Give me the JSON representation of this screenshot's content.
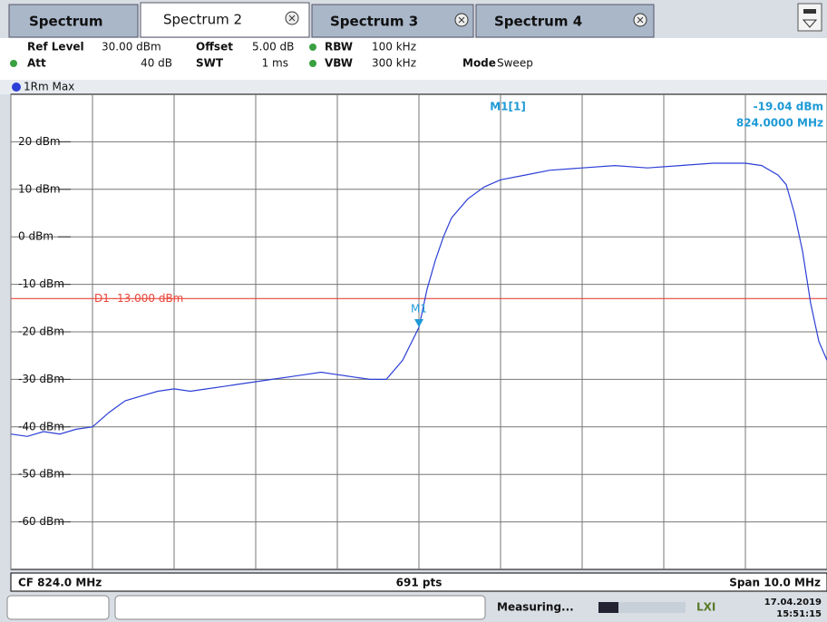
{
  "tabs": [
    "Spectrum",
    "Spectrum 2",
    "Spectrum 3",
    "Spectrum 4"
  ],
  "settings": [
    {
      "label": "Ref Level",
      "value": "30.00 dBm"
    },
    {
      "label": "Offset",
      "value": "5.00 dB"
    },
    {
      "label": "RBW",
      "value": "100 kHz"
    },
    {
      "label": "Att",
      "value": "40 dB"
    },
    {
      "label": "SWT",
      "value": "1 ms"
    },
    {
      "label": "VBW",
      "value": "300 kHz"
    },
    {
      "label": "Mode",
      "value": "Sweep"
    }
  ],
  "trace_label": "1Rm Max",
  "chart_data": {
    "type": "line",
    "x": [
      819.0,
      819.2,
      819.4,
      819.6,
      819.8,
      820.0,
      820.2,
      820.4,
      820.6,
      820.8,
      821.0,
      821.2,
      821.4,
      821.6,
      821.8,
      822.0,
      822.2,
      822.4,
      822.6,
      822.8,
      823.0,
      823.2,
      823.4,
      823.6,
      823.8,
      824.0,
      824.1,
      824.2,
      824.3,
      824.4,
      824.6,
      824.8,
      825.0,
      825.3,
      825.6,
      826.0,
      826.4,
      826.8,
      827.2,
      827.6,
      828.0,
      828.2,
      828.4,
      828.5,
      828.6,
      828.7,
      828.8,
      828.9,
      829.0
    ],
    "series": [
      {
        "name": "1Rm Max",
        "color": "#2c3fd6",
        "values": [
          -41.5,
          -42,
          -41,
          -41.5,
          -40.5,
          -40,
          -37,
          -34.5,
          -33.5,
          -32.5,
          -32,
          -32.5,
          -32,
          -31.5,
          -31,
          -30.5,
          -30,
          -29.5,
          -29,
          -28.5,
          -29,
          -29.5,
          -30,
          -30,
          -26,
          -19.04,
          -11,
          -5,
          0,
          4,
          8,
          10.5,
          12,
          13,
          14,
          14.5,
          15,
          14.5,
          15,
          15.5,
          15.5,
          15,
          13,
          11,
          5,
          -3,
          -14,
          -22,
          -26
        ]
      }
    ],
    "xlim": [
      819,
      829
    ],
    "xticks": [
      819,
      820,
      821,
      822,
      823,
      824,
      825,
      826,
      827,
      828,
      829
    ],
    "ylim": [
      -70,
      30
    ],
    "yticks": [
      {
        "value": 20,
        "label": "20 dBm"
      },
      {
        "value": 10,
        "label": "10 dBm"
      },
      {
        "value": 0,
        "label": "0 dBm"
      },
      {
        "value": -10,
        "label": "-10 dBm"
      },
      {
        "value": -20,
        "label": "-20 dBm"
      },
      {
        "value": -30,
        "label": "-30 dBm"
      },
      {
        "value": -40,
        "label": "-40 dBm"
      },
      {
        "value": -50,
        "label": "-50 dBm"
      },
      {
        "value": -60,
        "label": "-60 dBm"
      }
    ],
    "grid": true,
    "threshold": {
      "value": -13,
      "label": "D1 -13.000 dBm",
      "color": "#e8473a"
    },
    "marker": {
      "label": "M1",
      "x": 824.0,
      "value": -19.04,
      "readout_name": "M1[1]",
      "readout_value": "-19.04 dBm",
      "readout_freq": "824.0000 MHz",
      "color": "#1e9ad6"
    }
  },
  "footer": {
    "center_freq": "CF 824.0 MHz",
    "points": "691 pts",
    "span": "Span 10.0 MHz"
  },
  "status": {
    "state": "Measuring...",
    "date": "17.04.2019",
    "time": "15:51:15"
  }
}
